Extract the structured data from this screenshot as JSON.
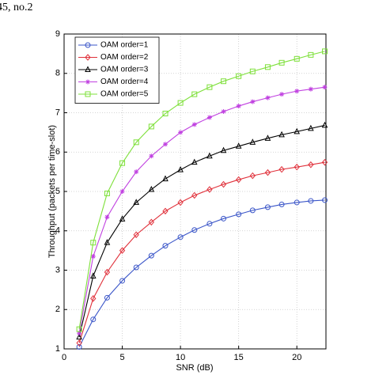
{
  "header": {
    "text": "45, no.2"
  },
  "chart_data": {
    "type": "line",
    "x_label": "SNR (dB)",
    "y_label": "Throughput (packets per time-slot)",
    "x": [
      1.3,
      2.5,
      3.7,
      5,
      6.2,
      7.5,
      8.7,
      10,
      11.2,
      12.5,
      13.7,
      15,
      16.2,
      17.5,
      18.7,
      20,
      21.2,
      22.4
    ],
    "xlim": [
      0,
      22.5
    ],
    "xticks": [
      0,
      5,
      10,
      15,
      20
    ],
    "ylim": [
      1,
      9
    ],
    "yticks": [
      1,
      2,
      3,
      4,
      5,
      6,
      7,
      8,
      9
    ],
    "grid": true,
    "legend": "upper-left",
    "series": [
      {
        "name": "OAM order=1",
        "color": "#3a55c8",
        "marker": "circle",
        "values": [
          1.05,
          1.75,
          2.3,
          2.73,
          3.07,
          3.37,
          3.62,
          3.84,
          4.02,
          4.18,
          4.31,
          4.42,
          4.52,
          4.6,
          4.67,
          4.72,
          4.76,
          4.78
        ]
      },
      {
        "name": "OAM order=2",
        "color": "#e0303a",
        "marker": "diamond",
        "values": [
          1.15,
          2.28,
          2.95,
          3.5,
          3.9,
          4.22,
          4.5,
          4.72,
          4.9,
          5.05,
          5.18,
          5.3,
          5.4,
          5.48,
          5.56,
          5.62,
          5.68,
          5.74
        ]
      },
      {
        "name": "OAM order=3",
        "color": "#000000",
        "marker": "triangle",
        "values": [
          1.3,
          2.85,
          3.7,
          4.3,
          4.72,
          5.05,
          5.32,
          5.55,
          5.74,
          5.9,
          6.04,
          6.15,
          6.25,
          6.35,
          6.44,
          6.52,
          6.6,
          6.68
        ]
      },
      {
        "name": "OAM order=4",
        "color": "#c040e0",
        "marker": "star",
        "values": [
          1.4,
          3.35,
          4.35,
          5.0,
          5.5,
          5.9,
          6.2,
          6.5,
          6.7,
          6.88,
          7.03,
          7.17,
          7.28,
          7.38,
          7.47,
          7.55,
          7.6,
          7.65
        ]
      },
      {
        "name": "OAM order=5",
        "color": "#7ee03a",
        "marker": "square",
        "values": [
          1.5,
          3.7,
          4.95,
          5.72,
          6.25,
          6.65,
          6.98,
          7.25,
          7.47,
          7.65,
          7.8,
          7.93,
          8.05,
          8.16,
          8.27,
          8.37,
          8.47,
          8.56
        ]
      }
    ]
  }
}
